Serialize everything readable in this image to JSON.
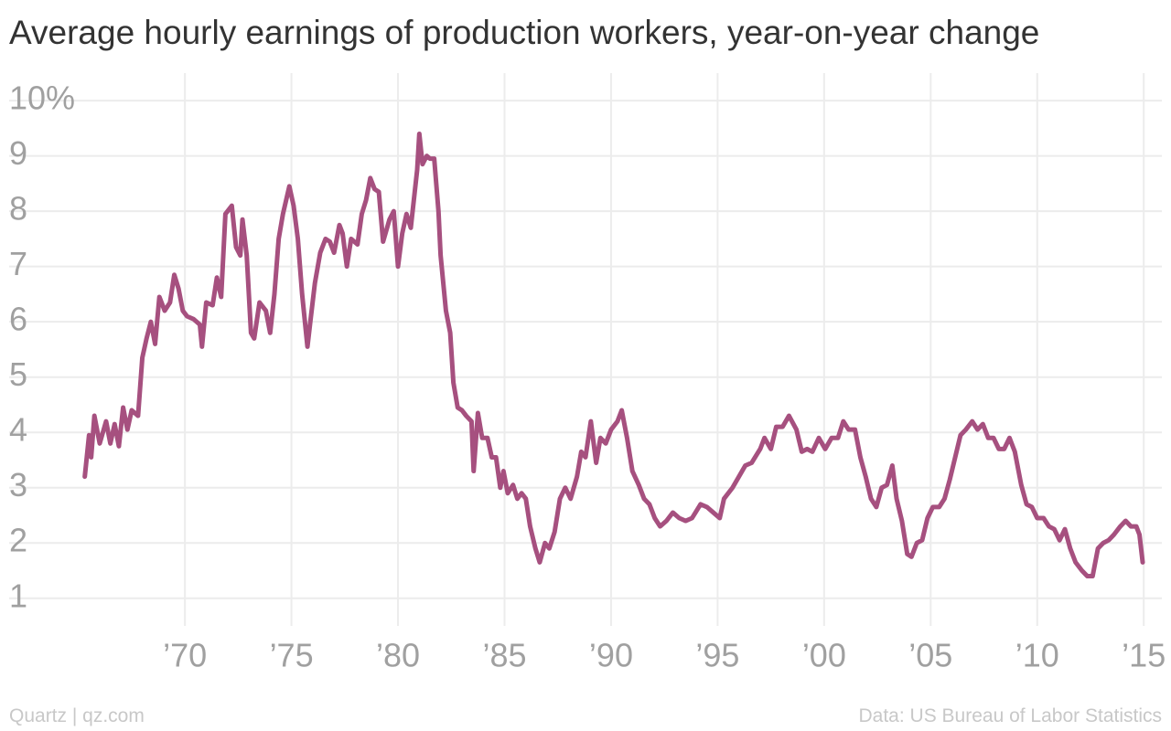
{
  "chart_data": {
    "type": "line",
    "title": "Average hourly earnings of production workers, year-on-year change",
    "credit": "Quartz | qz.com",
    "source": "Data: US Bureau of Labor Statistics",
    "color": "#a6507f",
    "grid": true,
    "xlim": [
      1961.75,
      2015.85
    ],
    "ylim": [
      0.5,
      10.25
    ],
    "xticks": [
      {
        "value": 1970,
        "label": "’70"
      },
      {
        "value": 1975,
        "label": "’75"
      },
      {
        "value": 1980,
        "label": "’80"
      },
      {
        "value": 1985,
        "label": "’85"
      },
      {
        "value": 1990,
        "label": "’90"
      },
      {
        "value": 1995,
        "label": "’95"
      },
      {
        "value": 2000,
        "label": "’00"
      },
      {
        "value": 2005,
        "label": "’05"
      },
      {
        "value": 2010,
        "label": "’10"
      },
      {
        "value": 2015,
        "label": "’15"
      }
    ],
    "yticks": [
      1,
      2,
      3,
      4,
      5,
      6,
      7,
      8,
      9,
      {
        "value": 10,
        "label": "10%"
      }
    ],
    "x": [
      1965.3,
      1965.5,
      1965.6,
      1965.75,
      1966.0,
      1966.3,
      1966.5,
      1966.7,
      1966.9,
      1967.1,
      1967.3,
      1967.5,
      1967.8,
      1968.0,
      1968.2,
      1968.4,
      1968.6,
      1968.8,
      1969.05,
      1969.3,
      1969.5,
      1969.7,
      1969.9,
      1970.1,
      1970.4,
      1970.7,
      1970.8,
      1971.0,
      1971.3,
      1971.5,
      1971.7,
      1971.9,
      1972.2,
      1972.4,
      1972.6,
      1972.7,
      1972.9,
      1973.1,
      1973.25,
      1973.5,
      1973.8,
      1974.0,
      1974.2,
      1974.4,
      1974.6,
      1974.9,
      1975.1,
      1975.3,
      1975.5,
      1975.75,
      1975.9,
      1976.1,
      1976.35,
      1976.6,
      1976.8,
      1977.0,
      1977.25,
      1977.4,
      1977.6,
      1977.8,
      1978.1,
      1978.3,
      1978.5,
      1978.7,
      1978.9,
      1979.1,
      1979.3,
      1979.6,
      1979.8,
      1980.0,
      1980.2,
      1980.4,
      1980.6,
      1980.9,
      1981.0,
      1981.15,
      1981.35,
      1981.5,
      1981.7,
      1981.9,
      1982.0,
      1982.25,
      1982.45,
      1982.6,
      1982.8,
      1983.0,
      1983.2,
      1983.45,
      1983.55,
      1983.75,
      1983.95,
      1984.2,
      1984.4,
      1984.6,
      1984.8,
      1984.95,
      1985.15,
      1985.4,
      1985.6,
      1985.8,
      1986.0,
      1986.2,
      1986.45,
      1986.65,
      1986.9,
      1987.1,
      1987.35,
      1987.6,
      1987.85,
      1988.1,
      1988.4,
      1988.6,
      1988.8,
      1989.05,
      1989.3,
      1989.5,
      1989.75,
      1990.0,
      1990.3,
      1990.5,
      1990.75,
      1991.0,
      1991.3,
      1991.55,
      1991.8,
      1992.05,
      1992.3,
      1992.6,
      1992.9,
      1993.2,
      1993.5,
      1993.8,
      1994.2,
      1994.5,
      1994.8,
      1995.1,
      1995.3,
      1995.7,
      1996.0,
      1996.3,
      1996.6,
      1997.0,
      1997.2,
      1997.5,
      1997.75,
      1998.05,
      1998.35,
      1998.7,
      1998.95,
      1999.2,
      1999.45,
      1999.75,
      2000.05,
      2000.35,
      2000.65,
      2000.9,
      2001.15,
      2001.45,
      2001.7,
      2001.95,
      2002.2,
      2002.45,
      2002.7,
      2002.95,
      2003.2,
      2003.4,
      2003.65,
      2003.9,
      2004.1,
      2004.35,
      2004.6,
      2004.85,
      2005.1,
      2005.4,
      2005.65,
      2005.9,
      2006.15,
      2006.4,
      2006.65,
      2006.95,
      2007.2,
      2007.45,
      2007.7,
      2007.95,
      2008.2,
      2008.45,
      2008.7,
      2008.95,
      2009.25,
      2009.5,
      2009.75,
      2010.0,
      2010.3,
      2010.55,
      2010.8,
      2011.05,
      2011.3,
      2011.55,
      2011.8,
      2012.1,
      2012.35,
      2012.6,
      2012.85,
      2013.1,
      2013.35,
      2013.6,
      2013.9,
      2014.15,
      2014.4,
      2014.65,
      2014.8,
      2014.95
    ],
    "values": [
      3.2,
      3.95,
      3.55,
      4.3,
      3.8,
      4.2,
      3.8,
      4.15,
      3.75,
      4.45,
      4.05,
      4.4,
      4.3,
      5.35,
      5.7,
      6.0,
      5.6,
      6.45,
      6.2,
      6.35,
      6.85,
      6.6,
      6.2,
      6.1,
      6.05,
      5.95,
      5.55,
      6.35,
      6.3,
      6.8,
      6.45,
      7.95,
      8.1,
      7.35,
      7.2,
      7.85,
      7.2,
      5.8,
      5.7,
      6.35,
      6.2,
      5.8,
      6.5,
      7.5,
      7.95,
      8.45,
      8.1,
      7.5,
      6.5,
      5.55,
      6.05,
      6.7,
      7.25,
      7.5,
      7.45,
      7.25,
      7.75,
      7.6,
      7.0,
      7.5,
      7.4,
      7.95,
      8.2,
      8.6,
      8.4,
      8.35,
      7.45,
      7.85,
      8.0,
      7.0,
      7.6,
      7.95,
      7.7,
      8.75,
      9.4,
      8.85,
      9.0,
      8.95,
      8.95,
      8.0,
      7.2,
      6.2,
      5.8,
      4.9,
      4.45,
      4.4,
      4.3,
      4.2,
      3.3,
      4.35,
      3.9,
      3.9,
      3.55,
      3.55,
      3.0,
      3.3,
      2.9,
      3.05,
      2.8,
      2.9,
      2.8,
      2.3,
      1.9,
      1.65,
      2.0,
      1.9,
      2.2,
      2.8,
      3.0,
      2.8,
      3.2,
      3.65,
      3.55,
      4.2,
      3.45,
      3.9,
      3.8,
      4.05,
      4.2,
      4.4,
      3.9,
      3.3,
      3.05,
      2.8,
      2.7,
      2.45,
      2.3,
      2.4,
      2.55,
      2.45,
      2.4,
      2.45,
      2.7,
      2.65,
      2.55,
      2.45,
      2.8,
      3.0,
      3.2,
      3.4,
      3.45,
      3.7,
      3.9,
      3.7,
      4.1,
      4.1,
      4.3,
      4.05,
      3.65,
      3.7,
      3.65,
      3.9,
      3.7,
      3.9,
      3.9,
      4.2,
      4.05,
      4.05,
      3.55,
      3.2,
      2.8,
      2.65,
      3.0,
      3.05,
      3.4,
      2.8,
      2.4,
      1.8,
      1.75,
      2.0,
      2.05,
      2.45,
      2.65,
      2.65,
      2.8,
      3.15,
      3.55,
      3.95,
      4.05,
      4.2,
      4.05,
      4.15,
      3.9,
      3.9,
      3.7,
      3.7,
      3.9,
      3.65,
      3.05,
      2.7,
      2.65,
      2.45,
      2.45,
      2.3,
      2.25,
      2.05,
      2.25,
      1.9,
      1.65,
      1.5,
      1.4,
      1.4,
      1.9,
      2.0,
      2.05,
      2.15,
      2.3,
      2.4,
      2.3,
      2.3,
      2.15,
      1.65
    ]
  }
}
